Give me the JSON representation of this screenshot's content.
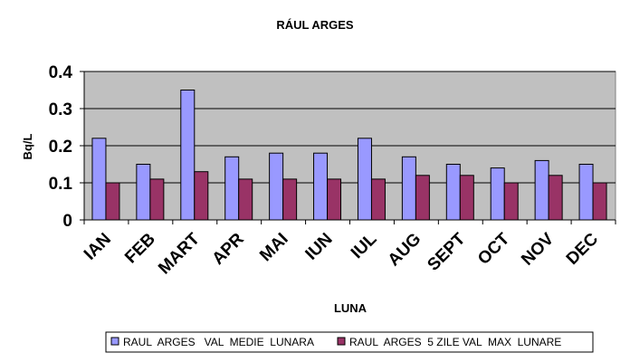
{
  "chart_data": {
    "type": "bar",
    "title": "RÁUL  ARGES",
    "xlabel": "LUNA",
    "ylabel": "Bq/L",
    "ylim": [
      0,
      0.4
    ],
    "yticks": [
      "0",
      "0.1",
      "0.2",
      "0.3",
      "0.4"
    ],
    "grid": true,
    "legend_position": "bottom",
    "categories": [
      "IAN",
      "FEB",
      "MART",
      "APR",
      "MAI",
      "IUN",
      "IUL",
      "AUG",
      "SEPT",
      "OCT",
      "NOV",
      "DEC"
    ],
    "series": [
      {
        "name": "RAUL  ARGES   VAL  MEDIE  LUNARA",
        "color": "#9999ff",
        "values": [
          0.22,
          0.15,
          0.35,
          0.17,
          0.18,
          0.18,
          0.22,
          0.17,
          0.15,
          0.14,
          0.16,
          0.15
        ]
      },
      {
        "name": "RAUL  ARGES  5 ZILE VAL  MAX  LUNARE",
        "color": "#993366",
        "values": [
          0.1,
          0.11,
          0.13,
          0.11,
          0.11,
          0.11,
          0.11,
          0.12,
          0.12,
          0.1,
          0.12,
          0.1
        ]
      }
    ],
    "plot_background": "#c0c0c0"
  }
}
